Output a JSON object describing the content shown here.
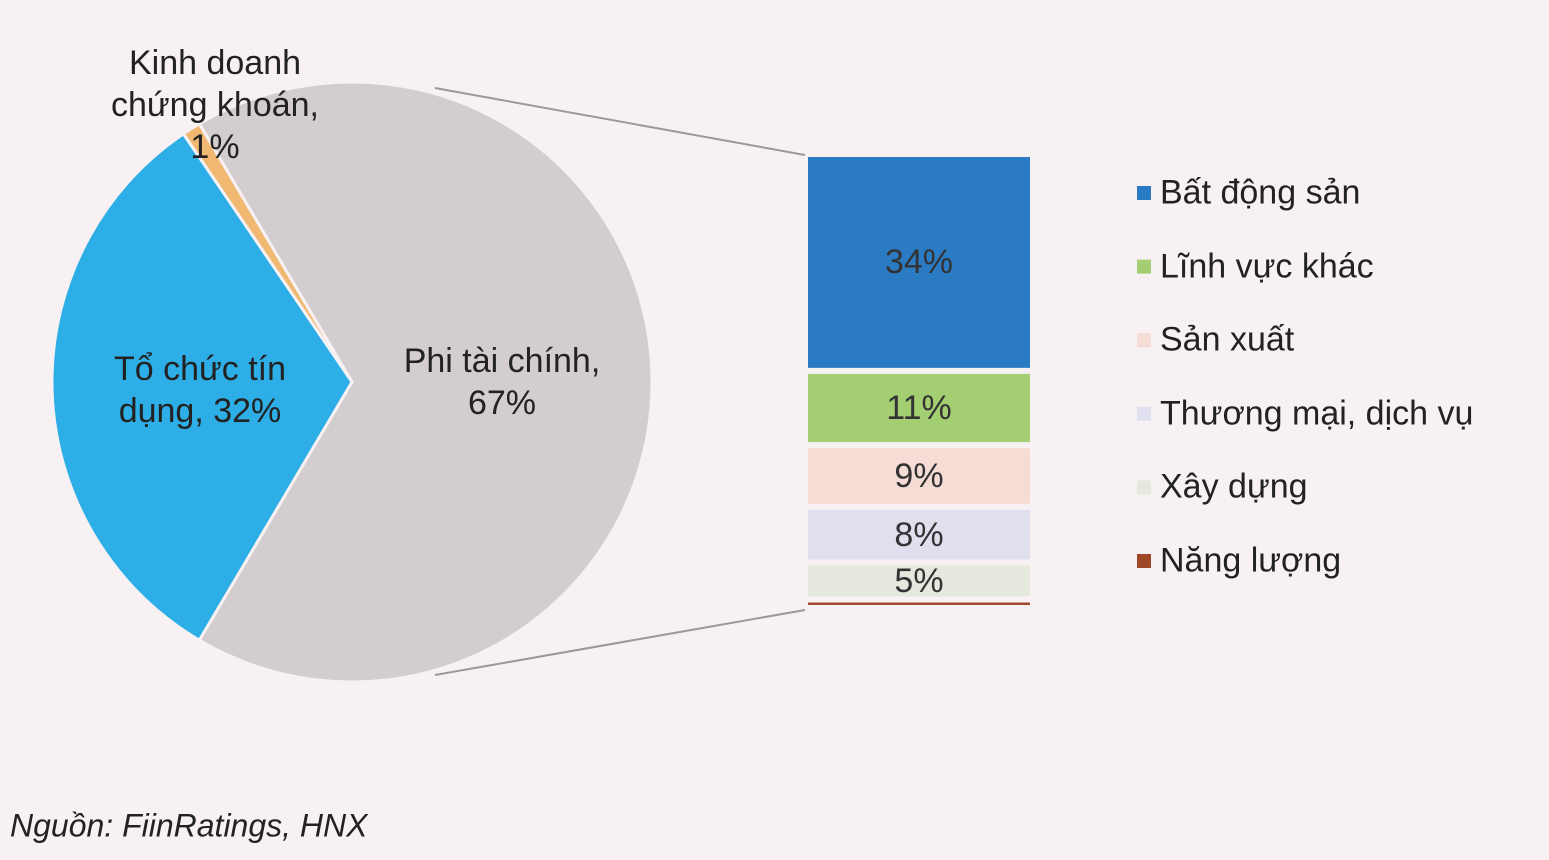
{
  "chart_data": [
    {
      "type": "pie",
      "values": [
        67,
        1,
        32
      ],
      "value_labels": [
        "Phi tài chính, 67%",
        "Kinh doanh chứng khoán, 1%",
        "Tổ chức tín dụng, 32%"
      ],
      "colors": [
        "#d3cdd0",
        "#f0b870",
        "#2eaee6"
      ]
    },
    {
      "type": "bar",
      "stacked": true,
      "legend": "right",
      "series": [
        {
          "name": "Bất động sản",
          "color": "#2b7bc4",
          "values": [
            34
          ],
          "value_labels": [
            "34%"
          ]
        },
        {
          "name": "Lĩnh vực khác",
          "color": "#a3cf72",
          "values": [
            11
          ],
          "value_labels": [
            "11%"
          ]
        },
        {
          "name": "Sản xuất",
          "color": "#f5ddd6",
          "values": [
            9
          ],
          "value_labels": [
            "9%"
          ]
        },
        {
          "name": "Thương mại, dịch vụ",
          "color": "#dfdfee",
          "values": [
            8
          ],
          "value_labels": [
            "8%"
          ]
        },
        {
          "name": "Xây dựng",
          "color": "#e5e8dc",
          "values": [
            5
          ],
          "value_labels": [
            "5%"
          ]
        },
        {
          "name": "Năng lượng",
          "color": "#a0482a",
          "values": [
            0.4
          ],
          "value_labels": [
            null
          ]
        }
      ]
    }
  ],
  "source": "Nguồn: FiinRatings, HNX"
}
